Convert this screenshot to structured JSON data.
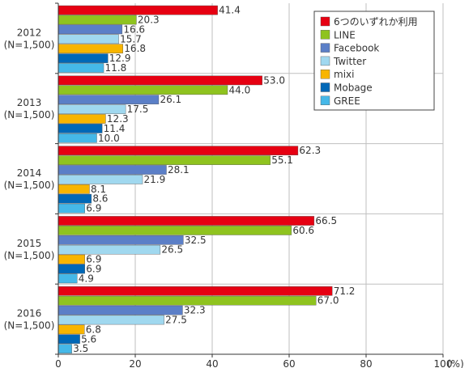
{
  "chart_data": {
    "type": "bar",
    "orientation": "horizontal",
    "categories": [
      {
        "line1": "2012",
        "line2": "(N=1,500)"
      },
      {
        "line1": "2013",
        "line2": "(N=1,500)"
      },
      {
        "line1": "2014",
        "line2": "(N=1,500)"
      },
      {
        "line1": "2015",
        "line2": "(N=1,500)"
      },
      {
        "line1": "2016",
        "line2": "(N=1,500)"
      }
    ],
    "series": [
      {
        "name": "6つのいずれか利用",
        "color": "#e60012",
        "values": [
          "41.4",
          "53.0",
          "62.3",
          "66.5",
          "71.2"
        ]
      },
      {
        "name": "LINE",
        "color": "#8fc31f",
        "values": [
          "20.3",
          "44.0",
          "55.1",
          "60.6",
          "67.0"
        ]
      },
      {
        "name": "Facebook",
        "color": "#5b7fc7",
        "values": [
          "16.6",
          "26.1",
          "28.1",
          "32.5",
          "32.3"
        ]
      },
      {
        "name": "Twitter",
        "color": "#a0d8ef",
        "values": [
          "15.7",
          "17.5",
          "21.9",
          "26.5",
          "27.5"
        ]
      },
      {
        "name": "mixi",
        "color": "#f8b500",
        "values": [
          "16.8",
          "12.3",
          "8.1",
          "6.9",
          "6.8"
        ]
      },
      {
        "name": "Mobage",
        "color": "#0068b7",
        "values": [
          "12.9",
          "11.4",
          "8.6",
          "6.9",
          "5.6"
        ]
      },
      {
        "name": "GREE",
        "color": "#45b8e8",
        "values": [
          "11.8",
          "10.0",
          "6.9",
          "4.9",
          "3.5"
        ]
      }
    ],
    "xlim": [
      0,
      100
    ],
    "xticks": [
      "0",
      "20",
      "40",
      "60",
      "80",
      "100"
    ],
    "unit": "(%)",
    "grid": true,
    "legend_position": "top-right"
  }
}
